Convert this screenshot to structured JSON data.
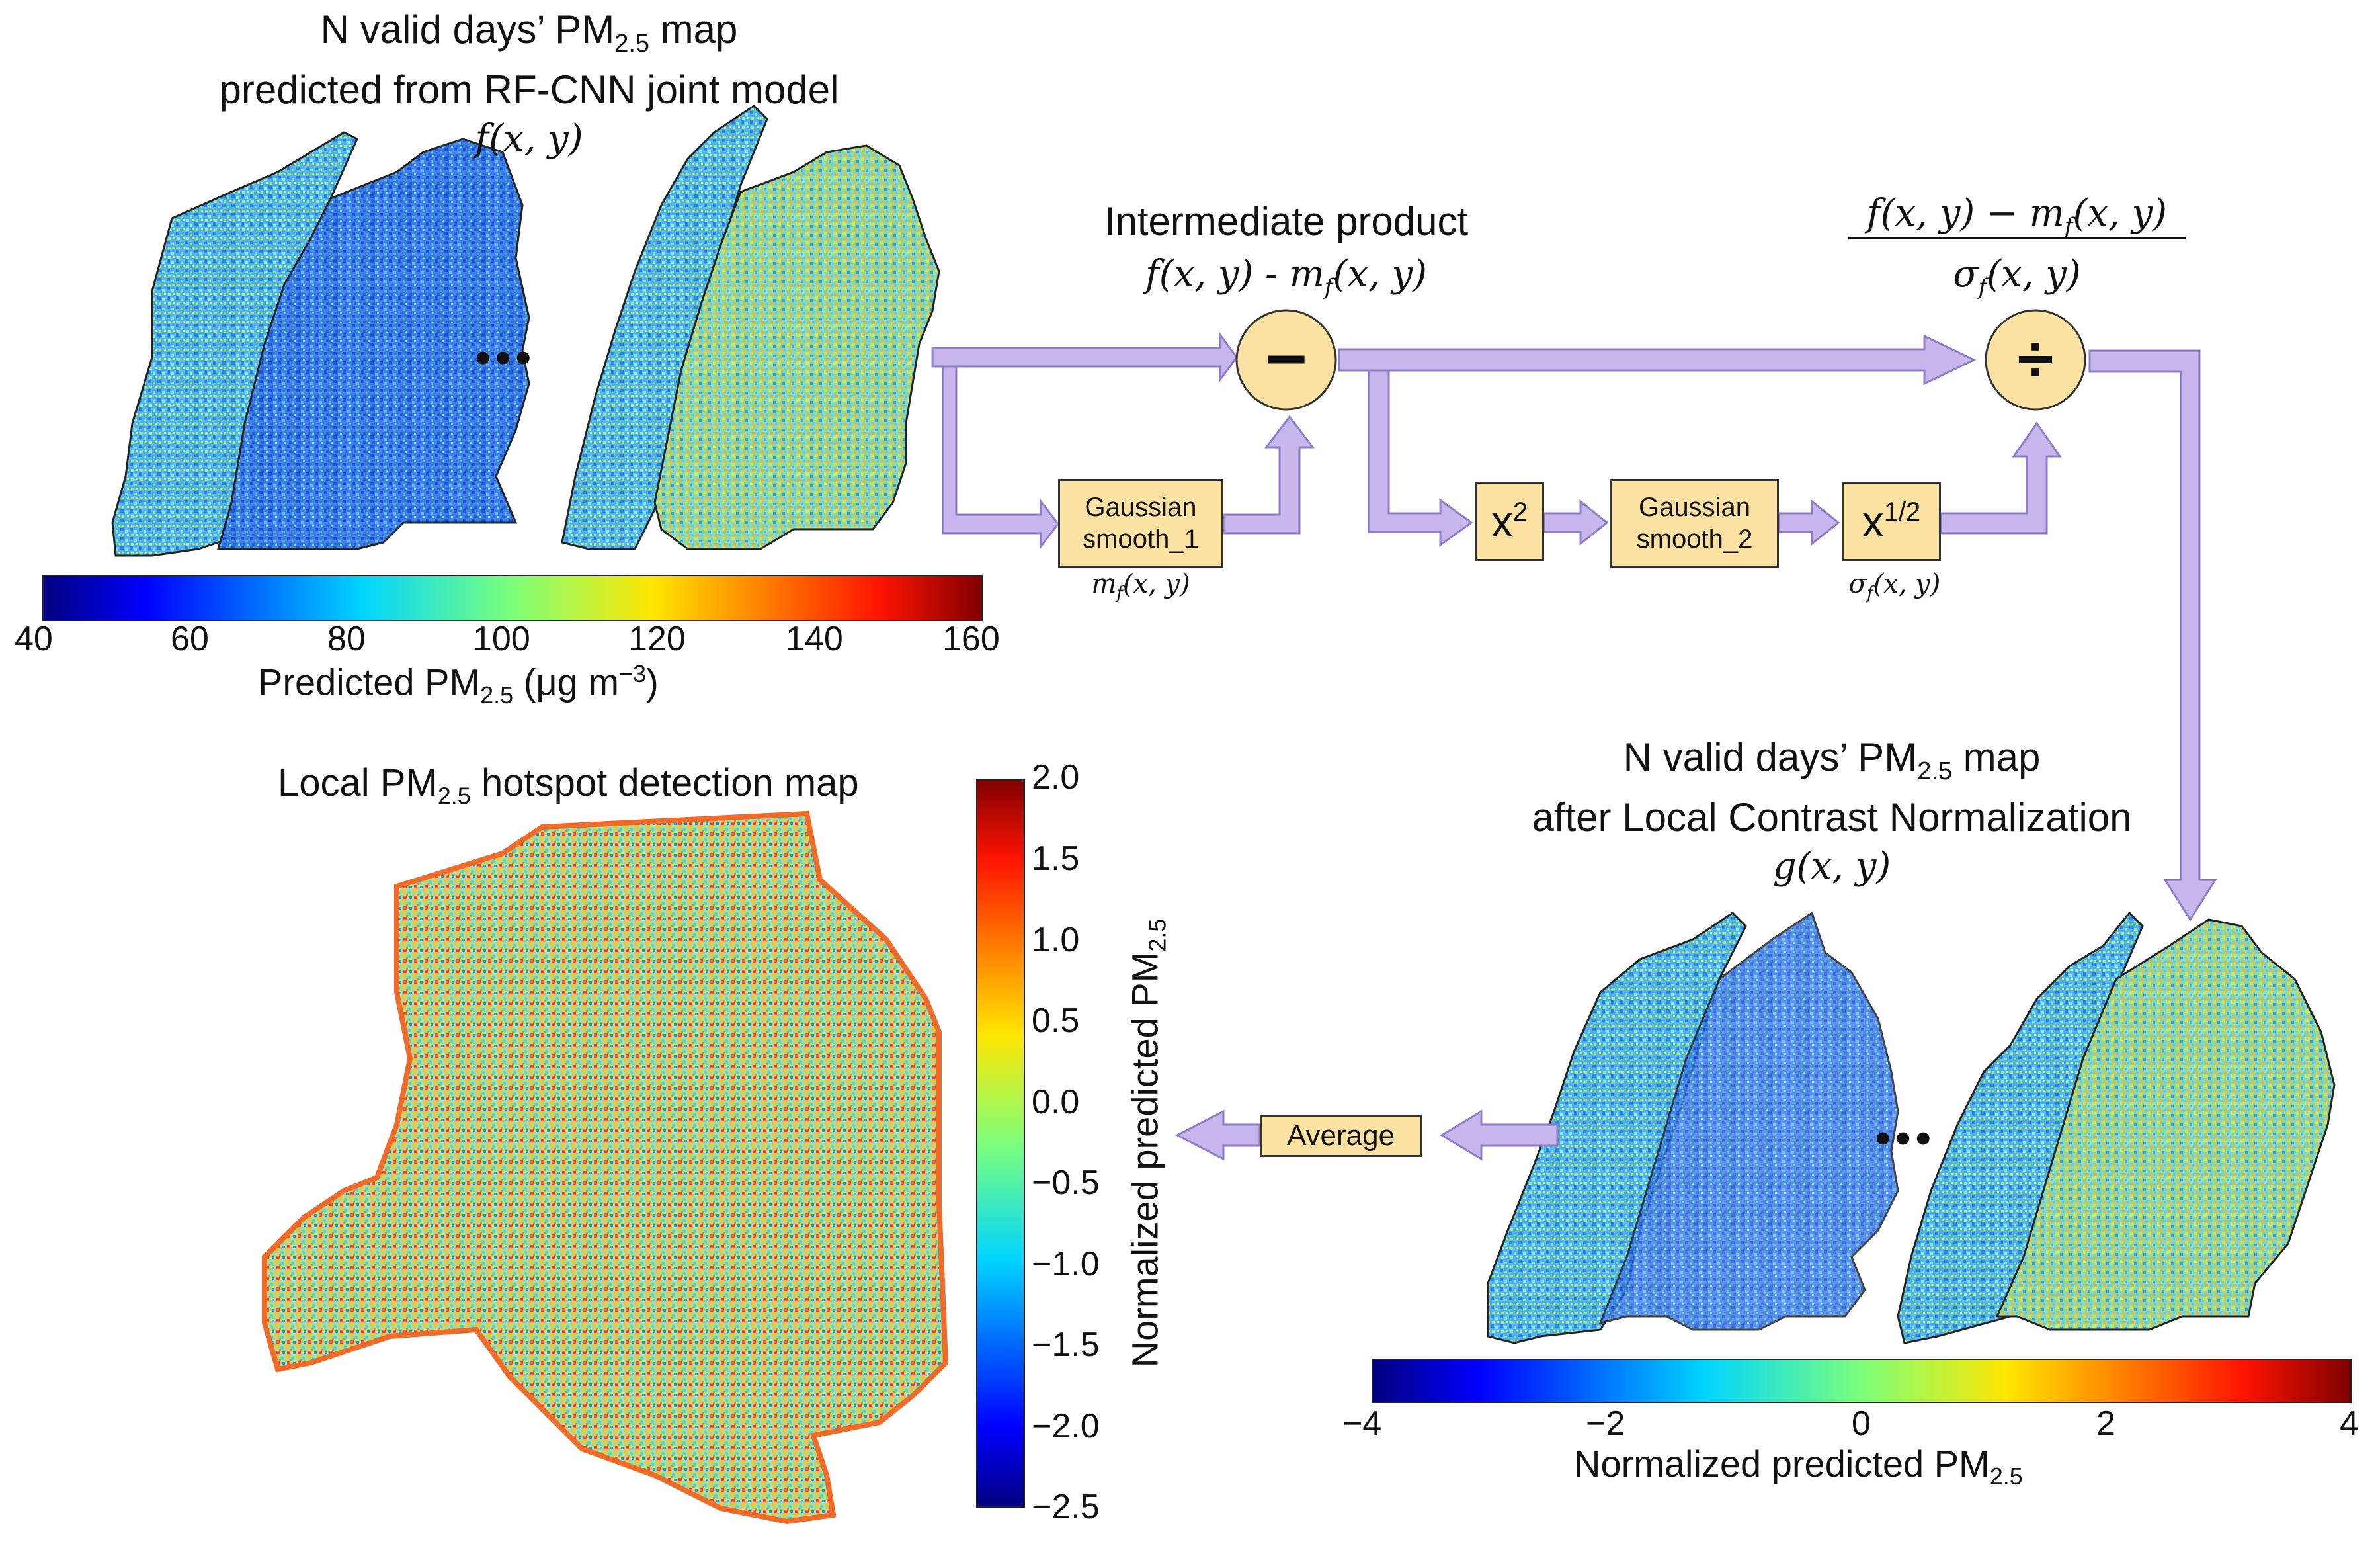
{
  "colors": {
    "arrow": "#c7b7ec",
    "arrow_stroke": "#8f7cc9",
    "box_fill": "#fbe2a3",
    "box_stroke": "#333333"
  },
  "top_left": {
    "title_line1_a": "N valid days’ PM",
    "title_line1_sub": "2.5",
    "title_line1_b": " map",
    "title_line2": "predicted from RF-CNN joint model",
    "formula": "f(x, y)",
    "ellipsis": "•••"
  },
  "colorbar_top": {
    "ticks": [
      "40",
      "60",
      "80",
      "100",
      "120",
      "140",
      "160"
    ],
    "label_a": "Predicted PM",
    "label_sub": "2.5",
    "label_b": " (μg m",
    "label_sup": "−3",
    "label_c": ")"
  },
  "intermediate": {
    "title": "Intermediate product",
    "formula": "f(x, y) - m",
    "formula_sub": "f",
    "formula_end": "(x, y)",
    "operator": "−"
  },
  "divide": {
    "numerator": "f(x, y) − m",
    "numerator_sub": "f",
    "numerator_end": "(x, y)",
    "denominator": "σ",
    "denominator_sub": "f",
    "denominator_end": "(x, y)",
    "operator": "÷"
  },
  "boxes": {
    "gauss1_line1": "Gaussian",
    "gauss1_line2": "smooth_1",
    "gauss1_out": "m",
    "gauss1_out_sub": "f",
    "gauss1_out_end": "(x, y)",
    "square": "x",
    "square_sup": "2",
    "gauss2_line1": "Gaussian",
    "gauss2_line2": "smooth_2",
    "sqrt": "x",
    "sqrt_sup": "1/2",
    "sqrt_out": "σ",
    "sqrt_out_sub": "f",
    "sqrt_out_end": "(x, y)",
    "average": "Average"
  },
  "bottom_right": {
    "title_line1_a": "N valid days’ PM",
    "title_line1_sub": "2.5",
    "title_line1_b": " map",
    "title_line2": "after Local Contrast Normalization",
    "formula": "g(x, y)",
    "ellipsis": "•••"
  },
  "colorbar_bottom": {
    "ticks": [
      "−4",
      "−2",
      "0",
      "2",
      "4"
    ],
    "label_a": "Normalized predicted PM",
    "label_sub": "2.5"
  },
  "hotspot": {
    "title_a": "Local PM",
    "title_sub": "2.5",
    "title_b": " hotspot detection map",
    "ticks": [
      "2.0",
      "1.5",
      "1.0",
      "0.5",
      "0.0",
      "−0.5",
      "−1.0",
      "−1.5",
      "−2.0",
      "−2.5"
    ],
    "axis_label_a": "Normalized predicted PM",
    "axis_label_sub": "2.5"
  }
}
